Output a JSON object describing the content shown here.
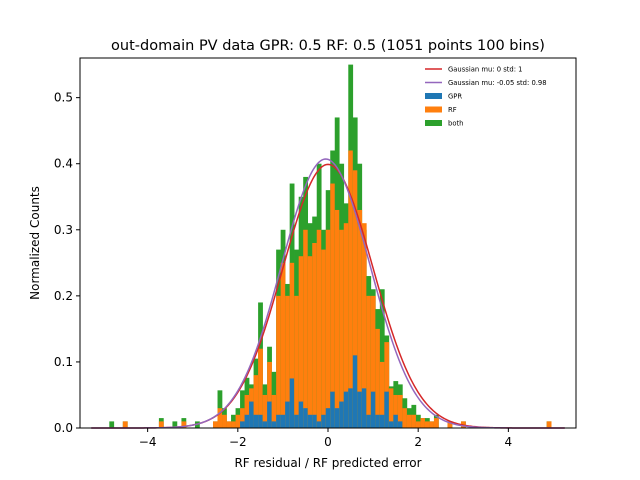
{
  "chart_data": {
    "type": "bar",
    "title": "out-domain PV data GPR: 0.5 RF: 0.5 (1051 points 100 bins)",
    "xlabel": "RF residual / RF predicted error",
    "ylabel": "Normalized Counts",
    "xlim": [
      -5.5,
      5.5
    ],
    "ylim": [
      0,
      0.56
    ],
    "xticks": [
      -4,
      -2,
      0,
      2,
      4
    ],
    "yticks": [
      0.0,
      0.1,
      0.2,
      0.3,
      0.4,
      0.5
    ],
    "xtick_labels": [
      "−4",
      "−2",
      "0",
      "2",
      "4"
    ],
    "ytick_labels": [
      "0.0",
      "0.1",
      "0.2",
      "0.3",
      "0.4",
      "0.5"
    ],
    "legend_position": "top-right",
    "bin_width": 0.1,
    "series": [
      {
        "name": "Gaussian mu: 0 std: 1",
        "kind": "line",
        "mu": 0,
        "sigma": 1,
        "color": "#d62728"
      },
      {
        "name": "Gaussian mu: -0.05 std: 0.98",
        "kind": "line",
        "mu": -0.05,
        "sigma": 0.98,
        "color": "#9467bd"
      },
      {
        "name": "GPR",
        "kind": "bar",
        "color": "#1f77b4"
      },
      {
        "name": "RF",
        "kind": "bar",
        "color": "#ff7f0e"
      },
      {
        "name": "both",
        "kind": "bar",
        "color": "#2ca02c"
      }
    ],
    "bins": [
      {
        "x": -4.8,
        "gpr": 0.0,
        "rf": 0.0,
        "both": 0.01
      },
      {
        "x": -4.5,
        "gpr": 0.0,
        "rf": 0.01,
        "both": 0.01
      },
      {
        "x": -3.7,
        "gpr": 0.0,
        "rf": 0.01,
        "both": 0.015
      },
      {
        "x": -3.4,
        "gpr": 0.0,
        "rf": 0.0,
        "both": 0.01
      },
      {
        "x": -3.2,
        "gpr": 0.0,
        "rf": 0.01,
        "both": 0.015
      },
      {
        "x": -2.9,
        "gpr": 0.0,
        "rf": 0.0,
        "both": 0.01
      },
      {
        "x": -2.5,
        "gpr": 0.0,
        "rf": 0.01,
        "both": 0.01
      },
      {
        "x": -2.4,
        "gpr": 0.0,
        "rf": 0.03,
        "both": 0.057
      },
      {
        "x": -2.3,
        "gpr": 0.0,
        "rf": 0.02,
        "both": 0.03
      },
      {
        "x": -2.2,
        "gpr": 0.0,
        "rf": 0.01,
        "both": 0.01
      },
      {
        "x": -2.1,
        "gpr": 0.0,
        "rf": 0.01,
        "both": 0.02
      },
      {
        "x": -2.0,
        "gpr": 0.0,
        "rf": 0.02,
        "both": 0.03
      },
      {
        "x": -1.9,
        "gpr": 0.01,
        "rf": 0.03,
        "both": 0.057
      },
      {
        "x": -1.8,
        "gpr": 0.02,
        "rf": 0.05,
        "both": 0.076
      },
      {
        "x": -1.7,
        "gpr": 0.04,
        "rf": 0.06,
        "both": 0.066
      },
      {
        "x": -1.6,
        "gpr": 0.02,
        "rf": 0.08,
        "both": 0.105
      },
      {
        "x": -1.5,
        "gpr": 0.02,
        "rf": 0.12,
        "both": 0.19
      },
      {
        "x": -1.4,
        "gpr": 0.01,
        "rf": 0.05,
        "both": 0.066
      },
      {
        "x": -1.3,
        "gpr": 0.04,
        "rf": 0.1,
        "both": 0.123
      },
      {
        "x": -1.2,
        "gpr": 0.01,
        "rf": 0.05,
        "both": 0.085
      },
      {
        "x": -1.1,
        "gpr": 0.02,
        "rf": 0.2,
        "both": 0.27
      },
      {
        "x": -1.0,
        "gpr": 0.02,
        "rf": 0.25,
        "both": 0.3
      },
      {
        "x": -0.9,
        "gpr": 0.04,
        "rf": 0.2,
        "both": 0.218
      },
      {
        "x": -0.8,
        "gpr": 0.075,
        "rf": 0.25,
        "both": 0.37
      },
      {
        "x": -0.7,
        "gpr": 0.02,
        "rf": 0.2,
        "both": 0.27
      },
      {
        "x": -0.6,
        "gpr": 0.04,
        "rf": 0.26,
        "both": 0.35
      },
      {
        "x": -0.5,
        "gpr": 0.03,
        "rf": 0.3,
        "both": 0.38
      },
      {
        "x": -0.4,
        "gpr": 0.02,
        "rf": 0.26,
        "both": 0.31
      },
      {
        "x": -0.3,
        "gpr": 0.02,
        "rf": 0.28,
        "both": 0.32
      },
      {
        "x": -0.2,
        "gpr": 0.01,
        "rf": 0.3,
        "both": 0.4
      },
      {
        "x": -0.1,
        "gpr": 0.02,
        "rf": 0.27,
        "both": 0.3
      },
      {
        "x": 0.0,
        "gpr": 0.03,
        "rf": 0.3,
        "both": 0.36
      },
      {
        "x": 0.1,
        "gpr": 0.055,
        "rf": 0.37,
        "both": 0.42
      },
      {
        "x": 0.2,
        "gpr": 0.03,
        "rf": 0.33,
        "both": 0.47
      },
      {
        "x": 0.3,
        "gpr": 0.04,
        "rf": 0.3,
        "both": 0.4
      },
      {
        "x": 0.4,
        "gpr": 0.055,
        "rf": 0.31,
        "both": 0.34
      },
      {
        "x": 0.5,
        "gpr": 0.06,
        "rf": 0.42,
        "both": 0.55
      },
      {
        "x": 0.6,
        "gpr": 0.11,
        "rf": 0.39,
        "both": 0.47
      },
      {
        "x": 0.7,
        "gpr": 0.055,
        "rf": 0.33,
        "both": 0.4
      },
      {
        "x": 0.8,
        "gpr": 0.06,
        "rf": 0.31,
        "both": 0.3
      },
      {
        "x": 0.9,
        "gpr": 0.02,
        "rf": 0.2,
        "both": 0.23
      },
      {
        "x": 1.0,
        "gpr": 0.055,
        "rf": 0.2,
        "both": 0.21
      },
      {
        "x": 1.1,
        "gpr": 0.02,
        "rf": 0.15,
        "both": 0.18
      },
      {
        "x": 1.2,
        "gpr": 0.02,
        "rf": 0.1,
        "both": 0.21
      },
      {
        "x": 1.3,
        "gpr": 0.055,
        "rf": 0.13,
        "both": 0.14
      },
      {
        "x": 1.4,
        "gpr": 0.01,
        "rf": 0.06,
        "both": 0.063
      },
      {
        "x": 1.5,
        "gpr": 0.02,
        "rf": 0.05,
        "both": 0.071
      },
      {
        "x": 1.6,
        "gpr": 0.01,
        "rf": 0.05,
        "both": 0.066
      },
      {
        "x": 1.7,
        "gpr": 0.0,
        "rf": 0.03,
        "both": 0.045
      },
      {
        "x": 1.8,
        "gpr": 0.0,
        "rf": 0.02,
        "both": 0.03
      },
      {
        "x": 1.9,
        "gpr": 0.0,
        "rf": 0.02,
        "both": 0.035
      },
      {
        "x": 2.0,
        "gpr": 0.0,
        "rf": 0.01,
        "both": 0.02
      },
      {
        "x": 2.1,
        "gpr": 0.0,
        "rf": 0.015,
        "both": 0.015
      },
      {
        "x": 2.2,
        "gpr": 0.0,
        "rf": 0.01,
        "both": 0.015
      },
      {
        "x": 2.3,
        "gpr": 0.0,
        "rf": 0.01,
        "both": 0.01
      },
      {
        "x": 2.4,
        "gpr": 0.0,
        "rf": 0.015,
        "both": 0.02
      },
      {
        "x": 2.7,
        "gpr": 0.0,
        "rf": 0.01,
        "both": 0.01
      },
      {
        "x": 3.0,
        "gpr": 0.0,
        "rf": 0.01,
        "both": 0.01
      },
      {
        "x": 4.9,
        "gpr": 0.0,
        "rf": 0.01,
        "both": 0.01
      }
    ]
  }
}
